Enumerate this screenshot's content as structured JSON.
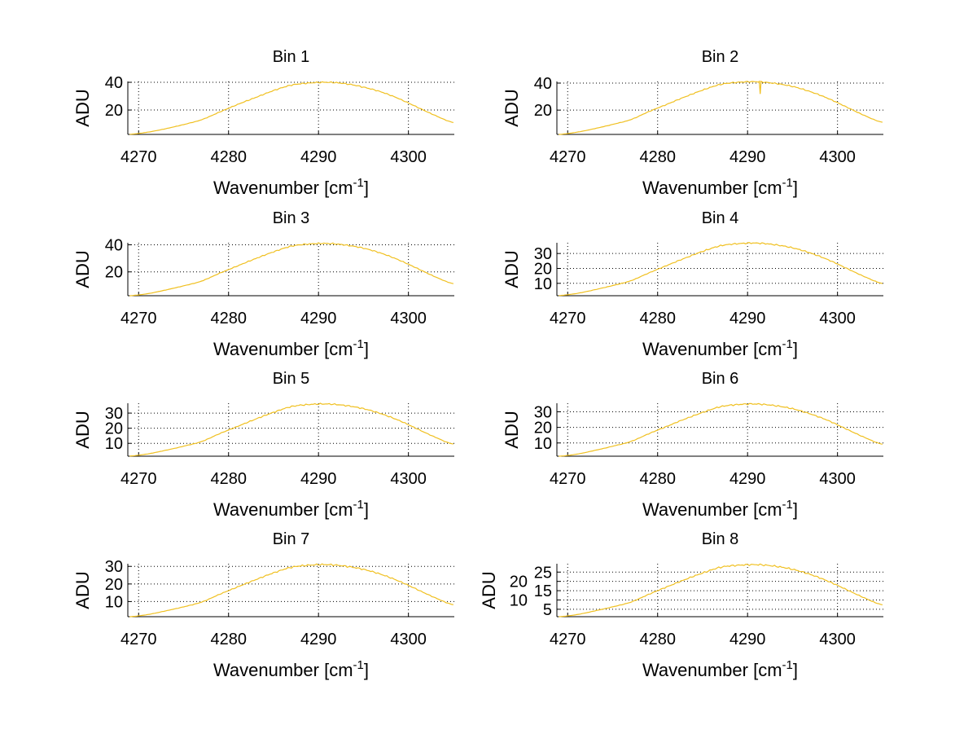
{
  "chart_data": {
    "type": "line",
    "layout": "4 rows x 2 columns",
    "line_color": "#f0c020",
    "grid": true,
    "xlim": [
      4268.8,
      4305.1
    ],
    "xticks": [
      4270,
      4280,
      4290,
      4300
    ],
    "xlabel_prefix": "Wavenumber [cm",
    "xlabel_sup": "-1",
    "xlabel_suffix": "]",
    "ylabel": "ADU",
    "x": [
      4269,
      4271,
      4273,
      4275,
      4277,
      4279,
      4281,
      4283,
      4285,
      4287,
      4289,
      4291,
      4293,
      4295,
      4297,
      4299,
      4301,
      4303,
      4305
    ],
    "panels": [
      {
        "title": "Bin 1",
        "ylim": [
          2.4,
          40.6
        ],
        "yticks": [
          20,
          40
        ],
        "y": [
          2.5,
          4,
          6.5,
          9.5,
          13,
          18.5,
          24,
          29,
          34,
          38,
          39.5,
          40,
          39,
          36.5,
          33,
          28,
          22,
          16,
          11
        ]
      },
      {
        "title": "Bin 2",
        "ylim": [
          2.0,
          41.2
        ],
        "yticks": [
          20,
          40
        ],
        "y": [
          2,
          3.6,
          6.3,
          9.4,
          12.9,
          18.8,
          24.2,
          29.7,
          34.8,
          39,
          40.6,
          41,
          39.8,
          37.5,
          33.6,
          28.5,
          22.3,
          16,
          11
        ],
        "dip": {
          "x": 4291.4,
          "y": 32
        }
      },
      {
        "title": "Bin 3",
        "ylim": [
          2.4,
          41.5
        ],
        "yticks": [
          20,
          40
        ],
        "y": [
          2.4,
          3.9,
          6.6,
          9.7,
          13.2,
          19,
          24.4,
          29.8,
          34.8,
          39,
          40.6,
          41,
          39.8,
          37.5,
          33.7,
          28.6,
          22.5,
          16.3,
          11.3
        ]
      },
      {
        "title": "Bin 4",
        "ylim": [
          1.7,
          37.2
        ],
        "yticks": [
          10,
          20,
          30
        ],
        "y": [
          1.8,
          3.2,
          5.7,
          8.5,
          11.7,
          16.9,
          21.9,
          26.8,
          31.4,
          35.2,
          36.6,
          37,
          35.9,
          33.8,
          30.3,
          25.7,
          20.1,
          14.5,
          9.9
        ]
      },
      {
        "title": "Bin 5",
        "ylim": [
          1.5,
          36.5
        ],
        "yticks": [
          10,
          20,
          30
        ],
        "y": [
          1.6,
          3,
          5.4,
          8.1,
          11.2,
          16.4,
          21.2,
          26,
          30.5,
          34.3,
          35.7,
          36,
          35,
          32.9,
          29.5,
          25,
          19.5,
          14,
          9.5
        ]
      },
      {
        "title": "Bin 6",
        "ylim": [
          1.5,
          35.5
        ],
        "yticks": [
          10,
          20,
          30
        ],
        "y": [
          1.5,
          2.8,
          5.2,
          7.9,
          10.9,
          15.9,
          20.6,
          25.3,
          29.6,
          33.3,
          34.7,
          35,
          34,
          32,
          28.6,
          24.3,
          18.9,
          13.6,
          9.2
        ]
      },
      {
        "title": "Bin 7",
        "ylim": [
          1.4,
          31.5
        ],
        "yticks": [
          10,
          20,
          30
        ],
        "y": [
          1.4,
          2.6,
          4.7,
          7,
          9.7,
          14.1,
          18.3,
          22.4,
          26.3,
          29.5,
          30.7,
          31,
          30.1,
          28.3,
          25.4,
          21.5,
          16.8,
          12.1,
          8.2
        ]
      },
      {
        "title": "Bin 8",
        "ylim": [
          1.0,
          29.5
        ],
        "yticks": [
          5,
          10,
          15,
          20,
          25
        ],
        "y": [
          1,
          2.1,
          4.1,
          6.3,
          8.8,
          13,
          17,
          20.9,
          24.5,
          27.6,
          28.7,
          29,
          28.2,
          26.5,
          23.7,
          20,
          15.6,
          11.1,
          7.4
        ]
      }
    ]
  }
}
